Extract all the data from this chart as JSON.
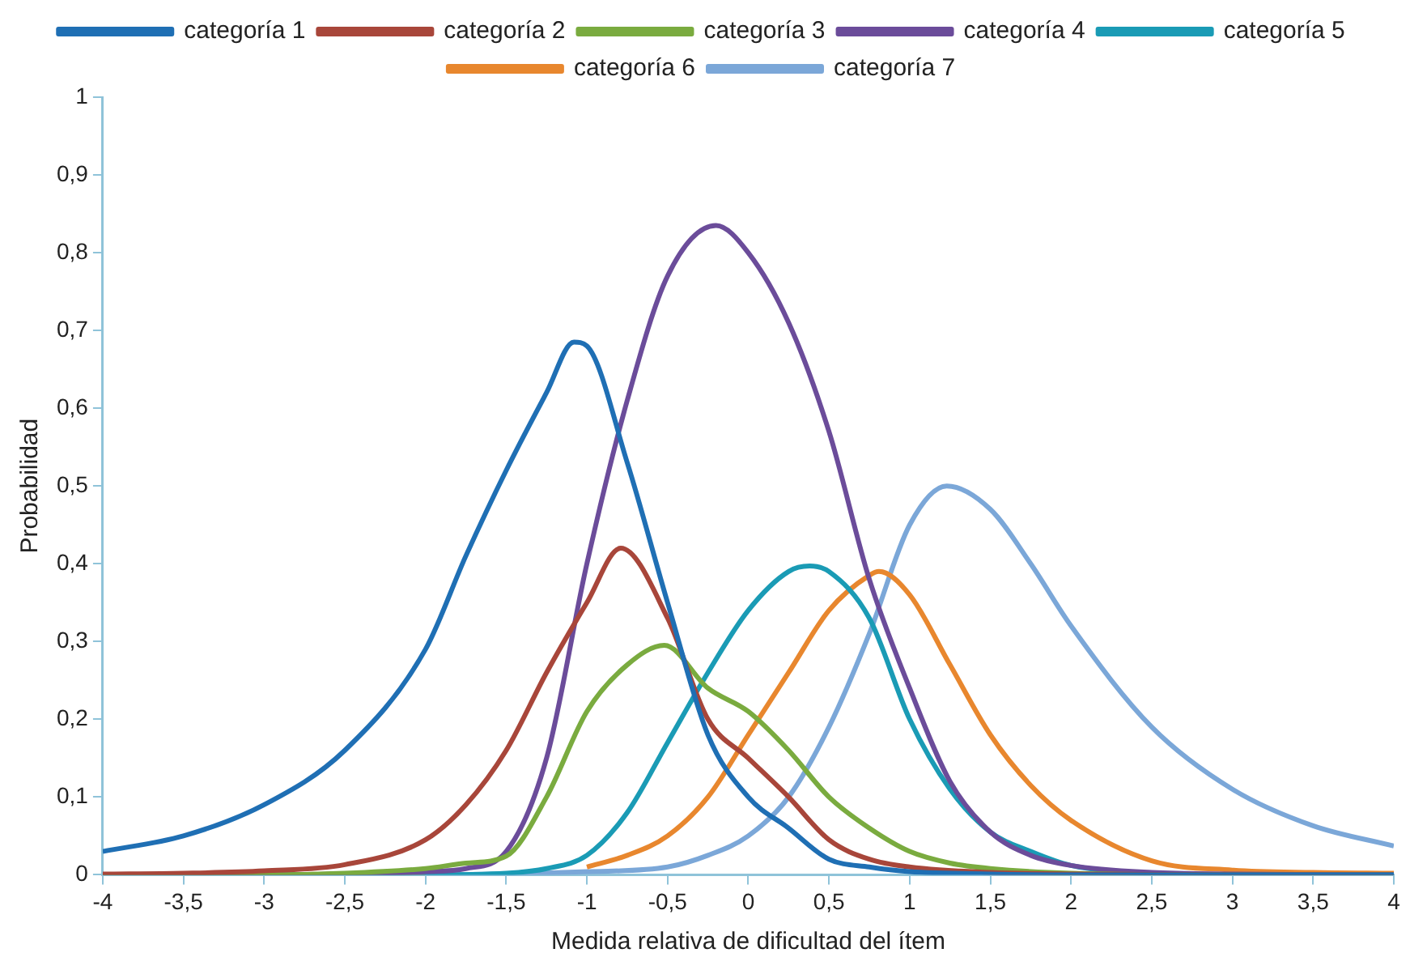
{
  "chart_data": {
    "type": "line",
    "xlabel": "Medida relativa de dificultad del ítem",
    "ylabel": "Probabilidad",
    "xlim": [
      -4,
      4
    ],
    "ylim": [
      0,
      1
    ],
    "xticks": [
      -4,
      {
        "value": -3.5,
        "label": "-3,5"
      },
      -3,
      {
        "value": -2.5,
        "label": "-2,5"
      },
      -2,
      {
        "value": -1.5,
        "label": "-1,5"
      },
      -1,
      {
        "value": -0.5,
        "label": "-0,5"
      },
      0,
      {
        "value": 0.5,
        "label": "0,5"
      },
      1,
      {
        "value": 1.5,
        "label": "1,5"
      },
      2,
      {
        "value": 2.5,
        "label": "2,5"
      },
      3,
      {
        "value": 3.5,
        "label": "3,5"
      },
      4
    ],
    "yticks": [
      0,
      {
        "value": 0.1,
        "label": "0,1"
      },
      {
        "value": 0.2,
        "label": "0,2"
      },
      {
        "value": 0.3,
        "label": "0,3"
      },
      {
        "value": 0.4,
        "label": "0,4"
      },
      {
        "value": 0.5,
        "label": "0,5"
      },
      {
        "value": 0.6,
        "label": "0,6"
      },
      {
        "value": 0.7,
        "label": "0,7"
      },
      {
        "value": 0.8,
        "label": "0,8"
      },
      {
        "value": 0.9,
        "label": "0,9"
      },
      1
    ],
    "grid": false,
    "legend": "top",
    "marker": "none",
    "line_style": "solid",
    "series": [
      {
        "name": "categoría 1",
        "color": "#1f6fb4",
        "x": [
          -4,
          -3.5,
          -3,
          -2.5,
          -2,
          -1.75,
          -1.5,
          -1.25,
          -1.08,
          -1,
          -0.75,
          -0.5,
          -0.25,
          0,
          0.25,
          0.5,
          0.75,
          1,
          1.5,
          2,
          3,
          4
        ],
        "values": [
          0.03,
          0.05,
          0.09,
          0.16,
          0.29,
          0.41,
          0.52,
          0.62,
          0.685,
          0.68,
          0.53,
          0.35,
          0.18,
          0.1,
          0.06,
          0.02,
          0.01,
          0.004,
          0.001,
          0,
          0,
          0
        ]
      },
      {
        "name": "categoría 2",
        "color": "#a8463a",
        "x": [
          -4,
          -3.5,
          -3,
          -2.5,
          -2,
          -1.75,
          -1.5,
          -1.25,
          -1,
          -0.79,
          -0.5,
          -0.25,
          0,
          0.25,
          0.5,
          0.75,
          1,
          1.5,
          2,
          3,
          4
        ],
        "values": [
          0.001,
          0.002,
          0.005,
          0.013,
          0.045,
          0.09,
          0.16,
          0.26,
          0.35,
          0.42,
          0.33,
          0.2,
          0.15,
          0.1,
          0.045,
          0.02,
          0.01,
          0.003,
          0.001,
          0,
          0
        ]
      },
      {
        "name": "categoría 3",
        "color": "#7aab3f",
        "x": [
          -4,
          -3,
          -2.5,
          -2,
          -1.75,
          -1.5,
          -1.25,
          -1,
          -0.75,
          -0.52,
          -0.25,
          0,
          0.25,
          0.5,
          0.75,
          1,
          1.25,
          1.5,
          2,
          3,
          4
        ],
        "values": [
          0,
          0,
          0.002,
          0.008,
          0.015,
          0.024,
          0.1,
          0.21,
          0.27,
          0.295,
          0.24,
          0.21,
          0.16,
          0.1,
          0.06,
          0.03,
          0.015,
          0.008,
          0.002,
          0,
          0
        ]
      },
      {
        "name": "categoría 4",
        "color": "#6b4c9a",
        "x": [
          -4,
          -3,
          -2.5,
          -2,
          -1.75,
          -1.5,
          -1.25,
          -1,
          -0.75,
          -0.5,
          -0.2,
          0,
          0.25,
          0.5,
          0.75,
          1,
          1.25,
          1.5,
          1.75,
          2,
          2.5,
          3,
          4
        ],
        "values": [
          0,
          0,
          0.001,
          0.004,
          0.008,
          0.03,
          0.15,
          0.4,
          0.61,
          0.77,
          0.835,
          0.8,
          0.71,
          0.57,
          0.38,
          0.24,
          0.12,
          0.055,
          0.025,
          0.012,
          0.003,
          0.001,
          0
        ]
      },
      {
        "name": "categoría 5",
        "color": "#1a9bb5",
        "x": [
          -4,
          -3,
          -2,
          -1.5,
          -1.25,
          -1,
          -0.75,
          -0.5,
          -0.25,
          0,
          0.25,
          0.38,
          0.5,
          0.75,
          1,
          1.25,
          1.5,
          1.75,
          2,
          2.5,
          3,
          4
        ],
        "values": [
          0,
          0,
          0,
          0.002,
          0.008,
          0.025,
          0.08,
          0.17,
          0.26,
          0.34,
          0.39,
          0.397,
          0.39,
          0.33,
          0.2,
          0.11,
          0.055,
          0.03,
          0.012,
          0.002,
          0,
          0
        ]
      },
      {
        "name": "categoría 6",
        "color": "#e8872e",
        "x": [
          -4,
          -3,
          -2,
          -1.5,
          -1,
          -0.75,
          -0.5,
          -0.25,
          0,
          0.25,
          0.5,
          0.75,
          0.81,
          1,
          1.25,
          1.5,
          1.75,
          2,
          2.5,
          3,
          3.5,
          4
        ],
        "values": [
          0,
          0,
          0,
          null,
          0.01,
          0.025,
          0.05,
          0.1,
          0.18,
          0.26,
          0.34,
          0.385,
          0.39,
          0.36,
          0.27,
          0.18,
          0.115,
          0.07,
          0.018,
          0.006,
          0.003,
          0.002
        ]
      },
      {
        "name": "categoría 7",
        "color": "#7ba7d8",
        "x": [
          -4,
          -3,
          -2,
          -1,
          -0.5,
          -0.25,
          0,
          0.25,
          0.5,
          0.75,
          1,
          1.23,
          1.5,
          1.75,
          2,
          2.5,
          3,
          3.5,
          4
        ],
        "values": [
          0,
          0,
          0,
          0.004,
          0.01,
          0.025,
          0.05,
          0.1,
          0.19,
          0.31,
          0.45,
          0.5,
          0.47,
          0.4,
          0.32,
          0.19,
          0.11,
          0.063,
          0.037
        ]
      }
    ]
  }
}
